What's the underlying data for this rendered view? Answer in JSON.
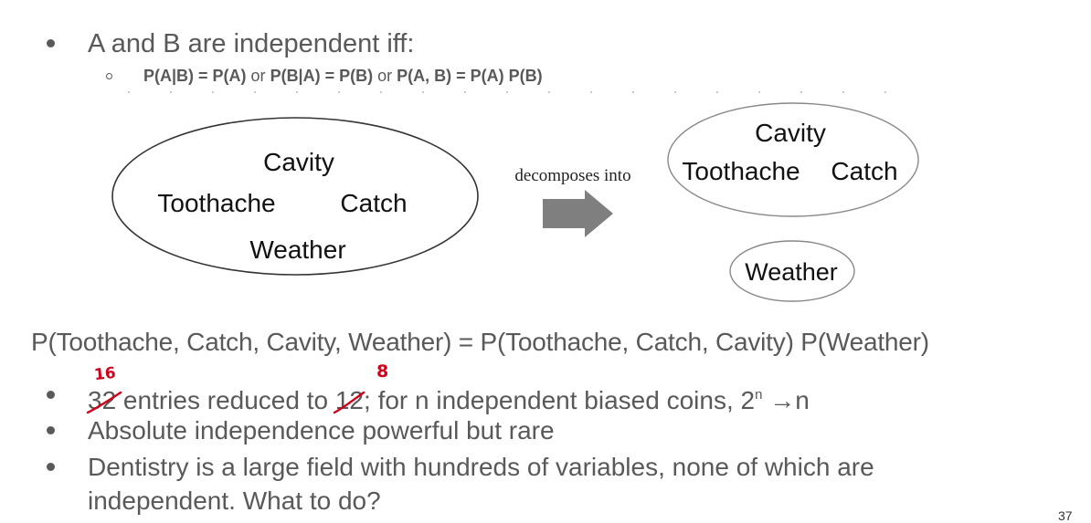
{
  "slide": {
    "bullet1": "A and B are independent iff:",
    "formula": {
      "t1": "P(A|B) = P(A)",
      "or1": " or ",
      "t2": "P(B|A) = P(B)",
      "or2": " or ",
      "t3": "P(A, B) = P(A) P(B)"
    },
    "diagram": {
      "left": {
        "cavity": "Cavity",
        "toothache": "Toothache",
        "catch": "Catch",
        "weather": "Weather"
      },
      "arrow_label": "decomposes into",
      "right": {
        "cavity": "Cavity",
        "toothache": "Toothache",
        "catch": "Catch",
        "weather": "Weather"
      }
    },
    "equation": "P(Toothache, Catch, Cavity, Weather) = P(Toothache, Catch, Cavity) P(Weather)",
    "bullets": {
      "b1_num_old": "32",
      "b1_mid": " entries reduced to ",
      "b1_num2_old": "12",
      "b1_tail": "; for n independent biased coins, 2",
      "b1_sup": "n",
      "b1_end": " →n",
      "b2": "Absolute independence powerful but rare",
      "b3_line1": "Dentistry is a large field with hundreds of variables, none of which are",
      "b3_line2": "independent. What to do?"
    },
    "annotations": {
      "num1_new": "16",
      "num2_new": "8"
    },
    "page_number": "37",
    "colors": {
      "text": "#595959",
      "annotation": "#d0021b",
      "arrow": "#7f7f7f"
    }
  }
}
